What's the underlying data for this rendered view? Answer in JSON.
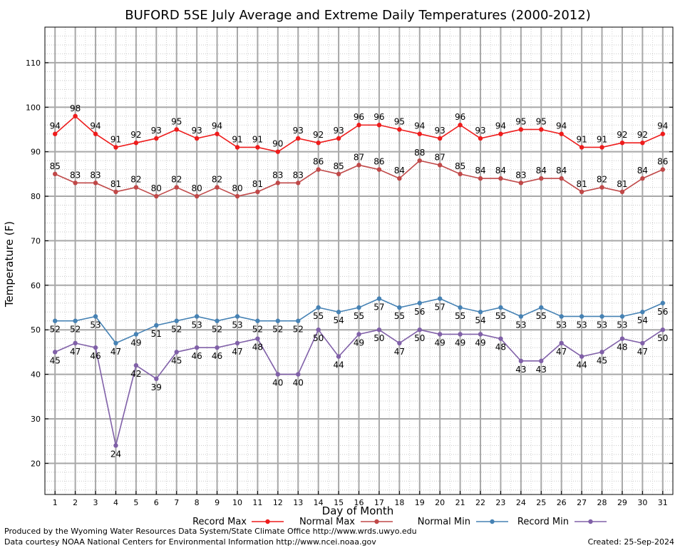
{
  "chart_data": {
    "type": "line",
    "title": "BUFORD 5SE July Average and Extreme Daily Temperatures (2000-2012)",
    "xlabel": "Day of Month",
    "ylabel": "Temperature (F)",
    "x": [
      1,
      2,
      3,
      4,
      5,
      6,
      7,
      8,
      9,
      10,
      11,
      12,
      13,
      14,
      15,
      16,
      17,
      18,
      19,
      20,
      21,
      22,
      23,
      24,
      25,
      26,
      27,
      28,
      29,
      30,
      31
    ],
    "xlim": [
      0.5,
      31.5
    ],
    "ylim": [
      13,
      118
    ],
    "y_ticks": [
      20,
      30,
      40,
      50,
      60,
      70,
      80,
      90,
      100,
      110
    ],
    "grid": true,
    "legend_position": "bottom",
    "series": [
      {
        "name": "Record Max",
        "color": "#ee1c1c",
        "values": [
          94,
          98,
          94,
          91,
          92,
          93,
          95,
          93,
          94,
          91,
          91,
          90,
          93,
          92,
          93,
          96,
          96,
          95,
          94,
          93,
          96,
          93,
          94,
          95,
          95,
          94,
          91,
          91,
          92,
          92,
          94
        ]
      },
      {
        "name": "Normal Max",
        "color": "#c04848",
        "values": [
          85,
          83,
          83,
          81,
          82,
          80,
          82,
          80,
          82,
          80,
          81,
          83,
          83,
          86,
          85,
          87,
          86,
          84,
          88,
          87,
          85,
          84,
          84,
          83,
          84,
          84,
          81,
          82,
          81,
          84,
          86
        ]
      },
      {
        "name": "Normal Min",
        "color": "#4682b4",
        "values": [
          52,
          52,
          53,
          47,
          49,
          51,
          52,
          53,
          52,
          53,
          52,
          52,
          52,
          55,
          54,
          55,
          57,
          55,
          56,
          57,
          55,
          54,
          55,
          53,
          55,
          53,
          53,
          53,
          53,
          54,
          56
        ]
      },
      {
        "name": "Record Min",
        "color": "#8060a8",
        "values": [
          45,
          47,
          46,
          24,
          42,
          39,
          45,
          46,
          46,
          47,
          48,
          40,
          40,
          50,
          44,
          49,
          50,
          47,
          50,
          49,
          49,
          49,
          48,
          43,
          43,
          47,
          44,
          45,
          48,
          47,
          50
        ]
      }
    ]
  },
  "credits": {
    "produced_by": "Produced by the Wyoming Water Resources Data System/State Climate Office http://www.wrds.uwyo.edu",
    "courtesy": "Data courtesy NOAA National Centers for Environmental Information http://www.ncei.noaa.gov",
    "created": "Created:  25-Sep-2024"
  }
}
